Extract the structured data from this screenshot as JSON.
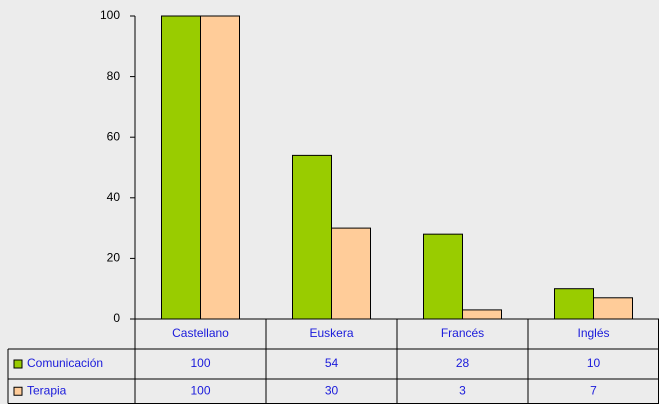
{
  "chart_data": {
    "type": "bar",
    "categories": [
      "Castellano",
      "Euskera",
      "Francés",
      "Inglés"
    ],
    "series": [
      {
        "name": "Comunicación",
        "color": "#99cc00",
        "values": [
          100,
          54,
          28,
          10
        ]
      },
      {
        "name": "Terapia",
        "color": "#ffcc99",
        "values": [
          100,
          30,
          3,
          7
        ]
      }
    ],
    "ylim": [
      0,
      100
    ],
    "yticks": [
      0,
      20,
      40,
      60,
      80,
      100
    ]
  }
}
